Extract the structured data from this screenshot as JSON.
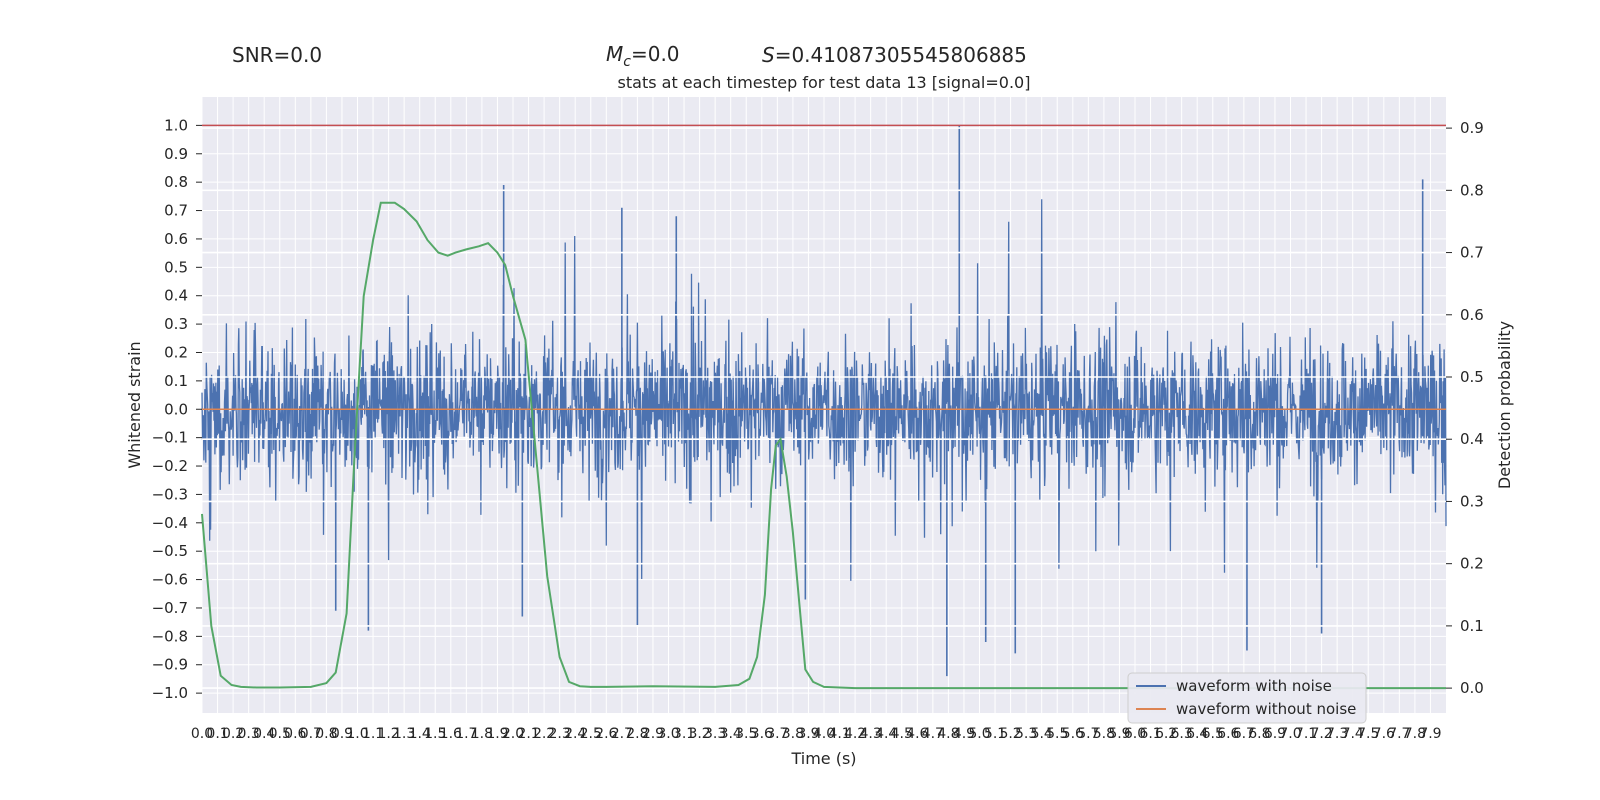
{
  "header": {
    "snr_label": "SNR=0.0",
    "mc_symbol": "M",
    "mc_subscript": "c",
    "mc_value": "=0.0",
    "s_symbol": "S",
    "s_value": "=0.41087305545806885"
  },
  "chart_data": {
    "type": "line",
    "title": "stats at each timestep for test data 13 [signal=0.0]",
    "xlabel": "Time (s)",
    "ylabel_left": "Whitened strain",
    "ylabel_right": "Detection probability",
    "xlim": [
      0.0,
      8.0
    ],
    "ylim_left": [
      -1.07,
      1.1
    ],
    "ylim_right": [
      -0.04,
      0.95
    ],
    "x_ticks": [
      "0.0",
      "0.1",
      "0.2",
      "0.3",
      "0.4",
      "0.5",
      "0.6",
      "0.7",
      "0.8",
      "0.9",
      "1.0",
      "1.1",
      "1.2",
      "1.3",
      "1.4",
      "1.5",
      "1.6",
      "1.7",
      "1.8",
      "1.9",
      "2.0",
      "2.1",
      "2.2",
      "2.3",
      "2.4",
      "2.5",
      "2.6",
      "2.7",
      "2.8",
      "2.9",
      "3.0",
      "3.1",
      "3.2",
      "3.3",
      "3.4",
      "3.5",
      "3.6",
      "3.7",
      "3.8",
      "3.9",
      "4.0",
      "4.1",
      "4.2",
      "4.3",
      "4.4",
      "4.5",
      "4.6",
      "4.7",
      "4.8",
      "4.9",
      "5.0",
      "5.1",
      "5.2",
      "5.3",
      "5.4",
      "5.5",
      "5.6",
      "5.7",
      "5.8",
      "5.9",
      "6.0",
      "6.1",
      "6.2",
      "6.3",
      "6.4",
      "6.5",
      "6.6",
      "6.7",
      "6.8",
      "6.9",
      "7.0",
      "7.1",
      "7.2",
      "7.3",
      "7.4",
      "7.5",
      "7.6",
      "7.7",
      "7.8",
      "7.9"
    ],
    "y_ticks_left": [
      "1.0",
      "0.9",
      "0.8",
      "0.7",
      "0.6",
      "0.5",
      "0.4",
      "0.3",
      "0.2",
      "0.1",
      "0.0",
      "−0.1",
      "−0.2",
      "−0.3",
      "−0.4",
      "−0.5",
      "−0.6",
      "−0.7",
      "−0.8",
      "−0.9",
      "−1.0"
    ],
    "y_ticks_right": [
      "0.9",
      "0.8",
      "0.7",
      "0.6",
      "0.5",
      "0.4",
      "0.3",
      "0.2",
      "0.1",
      "0.0"
    ],
    "threshold_line": {
      "y": 1.0,
      "axis": "left",
      "color": "#c44e52"
    },
    "series": [
      {
        "name": "waveform with noise",
        "axis": "left",
        "color": "#4c72b0",
        "kind": "dense-noise",
        "approx_spikes": [
          {
            "x": 1.94,
            "y": 0.79
          },
          {
            "x": 4.87,
            "y": 1.0
          },
          {
            "x": 4.79,
            "y": -0.94
          },
          {
            "x": 7.85,
            "y": 0.81
          },
          {
            "x": 5.23,
            "y": -0.86
          },
          {
            "x": 6.72,
            "y": -0.85
          },
          {
            "x": 7.2,
            "y": -0.79
          },
          {
            "x": 1.07,
            "y": -0.78
          },
          {
            "x": 2.8,
            "y": -0.76
          },
          {
            "x": 2.06,
            "y": -0.73
          },
          {
            "x": 0.86,
            "y": -0.71
          },
          {
            "x": 3.88,
            "y": -0.67
          },
          {
            "x": 5.04,
            "y": -0.82
          },
          {
            "x": 3.05,
            "y": 0.68
          },
          {
            "x": 2.7,
            "y": 0.71
          }
        ]
      },
      {
        "name": "waveform without noise",
        "axis": "left",
        "color": "#dd8452",
        "x": [
          0.0,
          8.0
        ],
        "y": [
          0.0,
          0.0
        ]
      },
      {
        "name": "",
        "axis": "right",
        "color": "#55a868",
        "x": [
          0.0,
          0.06,
          0.12,
          0.19,
          0.25,
          0.35,
          0.5,
          0.7,
          0.8,
          0.86,
          0.93,
          0.98,
          1.04,
          1.1,
          1.15,
          1.19,
          1.24,
          1.3,
          1.38,
          1.45,
          1.52,
          1.58,
          1.63,
          1.7,
          1.78,
          1.84,
          1.9,
          1.95,
          2.0,
          2.08,
          2.15,
          2.22,
          2.3,
          2.36,
          2.43,
          2.5,
          2.6,
          2.9,
          3.3,
          3.45,
          3.52,
          3.57,
          3.62,
          3.66,
          3.69,
          3.72,
          3.76,
          3.8,
          3.84,
          3.88,
          3.93,
          4.0,
          4.2,
          8.0
        ],
        "y": [
          0.28,
          0.1,
          0.02,
          0.005,
          0.002,
          0.001,
          0.001,
          0.002,
          0.008,
          0.025,
          0.12,
          0.37,
          0.63,
          0.72,
          0.78,
          0.78,
          0.78,
          0.77,
          0.75,
          0.72,
          0.7,
          0.695,
          0.7,
          0.705,
          0.71,
          0.715,
          0.7,
          0.68,
          0.63,
          0.56,
          0.37,
          0.18,
          0.05,
          0.01,
          0.003,
          0.002,
          0.002,
          0.003,
          0.002,
          0.005,
          0.015,
          0.05,
          0.15,
          0.32,
          0.39,
          0.4,
          0.34,
          0.25,
          0.14,
          0.03,
          0.01,
          0.002,
          0.0,
          0.0
        ]
      }
    ],
    "legend": {
      "position": "lower-right",
      "items": [
        "waveform with noise",
        "waveform without noise"
      ]
    },
    "grid": true,
    "background": "#eaeaf2"
  }
}
